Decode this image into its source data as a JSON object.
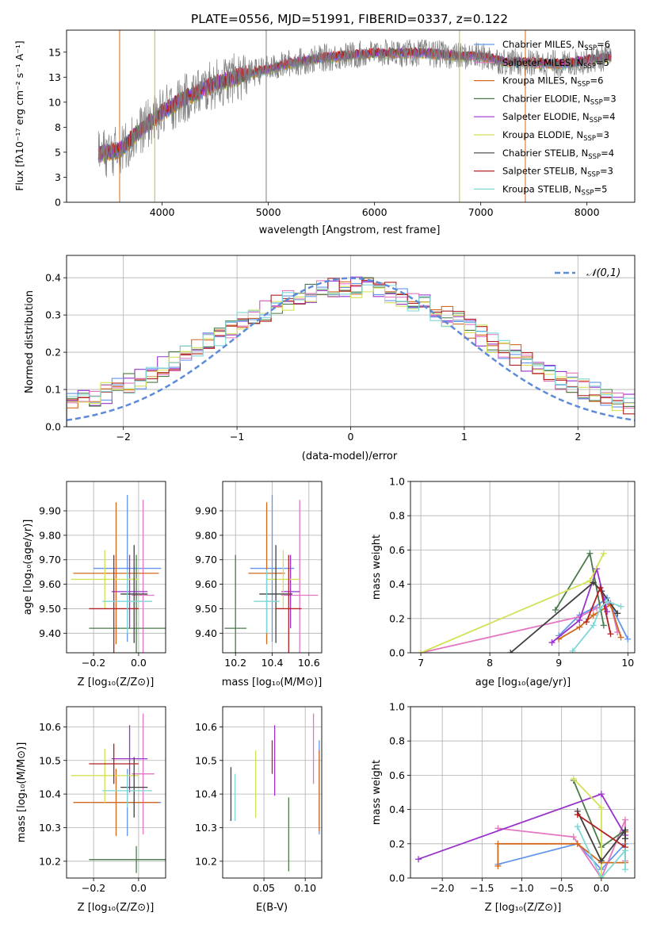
{
  "colors": [
    "#6495ed",
    "#e377c2",
    "#d2691e",
    "#4a7a4a",
    "#9932cc",
    "#d4e157",
    "#404040",
    "#b22222",
    "#7fd6d6"
  ],
  "chart_data": [
    {
      "id": "spectrum",
      "type": "line",
      "title": "PLATE=0556, MJD=51991, FIBERID=0337, z=0.122",
      "xlabel": "wavelength [Angstrom, rest frame]",
      "ylabel": "Flux [fλ10⁻¹⁷ erg cm⁻² s⁻¹ A⁻¹]",
      "xlim": [
        3100,
        8450
      ],
      "ylim": [
        0,
        17.2
      ],
      "xticks": [
        4000,
        5000,
        6000,
        7000,
        8000
      ],
      "yticks": [
        0.0,
        2.5,
        5.0,
        7.5,
        10.0,
        12.5,
        15.0
      ],
      "legend": "top-right",
      "series": [
        {
          "name": "Chabrier MILES, N_SSP=6"
        },
        {
          "name": "Salpeter MILES, N_SSP=5"
        },
        {
          "name": "Kroupa MILES, N_SSP=6"
        },
        {
          "name": "Chabrier ELODIE, N_SSP=3"
        },
        {
          "name": "Salpeter ELODIE, N_SSP=4"
        },
        {
          "name": "Kroupa ELODIE, N_SSP=3"
        },
        {
          "name": "Chabrier STELIB, N_SSP=4"
        },
        {
          "name": "Salpeter STELIB, N_SSP=3"
        },
        {
          "name": "Kroupa STELIB, N_SSP=5"
        }
      ],
      "continuum": {
        "x": [
          3400,
          3600,
          3800,
          4000,
          4200,
          4500,
          4800,
          5000,
          5200,
          5500,
          5800,
          6000,
          6200,
          6500,
          6800,
          7000,
          7200,
          7500,
          7800,
          8000,
          8200
        ],
        "y": [
          4.8,
          5.2,
          7.2,
          9.0,
          10.3,
          11.8,
          12.8,
          13.3,
          13.9,
          14.4,
          14.7,
          14.9,
          14.9,
          14.9,
          14.6,
          14.6,
          14.1,
          13.9,
          13.8,
          14.2,
          14.5
        ]
      }
    },
    {
      "id": "residuals",
      "type": "bar",
      "xlabel": "(data-model)/error",
      "ylabel": "Normed distribution",
      "xlim": [
        -2.5,
        2.5
      ],
      "ylim": [
        0,
        0.46
      ],
      "xticks": [
        -2,
        -1,
        0,
        1,
        2
      ],
      "yticks": [
        0.0,
        0.1,
        0.2,
        0.3,
        0.4
      ],
      "bin_width": 0.1,
      "reference": {
        "name": "𝒩(0,1)",
        "mean": 0,
        "sigma": 1
      },
      "legend": "top-right"
    },
    {
      "id": "age_vs_Z",
      "type": "scatter",
      "xlabel": "Z [log₁₀(Z/Z⊙)]",
      "ylabel": "age  [log₁₀(age/yr)]",
      "xlim": [
        -0.32,
        0.12
      ],
      "ylim": [
        9.32,
        10.02
      ],
      "xticks": [
        -0.2,
        0.0
      ],
      "yticks": [
        9.4,
        9.5,
        9.6,
        9.7,
        9.8,
        9.9
      ],
      "points": [
        {
          "x": -0.05,
          "xerr": 0.15,
          "y": 9.665,
          "yerr": 0.3
        },
        {
          "x": 0.02,
          "xerr": 0.05,
          "y": 9.555,
          "yerr": 0.39
        },
        {
          "x": -0.1,
          "xerr": 0.19,
          "y": 9.645,
          "yerr": 0.29
        },
        {
          "x": -0.01,
          "xerr": 0.21,
          "y": 9.42,
          "yerr": 0.3
        },
        {
          "x": -0.04,
          "xerr": 0.08,
          "y": 9.57,
          "yerr": 0.15
        },
        {
          "x": -0.15,
          "xerr": 0.15,
          "y": 9.62,
          "yerr": 0.12
        },
        {
          "x": -0.02,
          "xerr": 0.06,
          "y": 9.56,
          "yerr": 0.2
        },
        {
          "x": -0.11,
          "xerr": 0.11,
          "y": 9.5,
          "yerr": 0.22
        },
        {
          "x": -0.05,
          "xerr": 0.11,
          "y": 9.53,
          "yerr": 0.13
        }
      ]
    },
    {
      "id": "age_vs_mass",
      "type": "scatter",
      "xlabel": "mass [log₁₀(M/M⊙)]",
      "ylabel": "",
      "xlim": [
        10.13,
        10.67
      ],
      "ylim": [
        9.32,
        10.02
      ],
      "xticks": [
        10.2,
        10.4,
        10.6
      ],
      "yticks": [
        9.4,
        9.5,
        9.6,
        9.7,
        9.8,
        9.9
      ],
      "points": [
        {
          "x": 10.4,
          "xerr": 0.12,
          "y": 9.665,
          "yerr": 0.3
        },
        {
          "x": 10.55,
          "xerr": 0.1,
          "y": 9.555,
          "yerr": 0.39
        },
        {
          "x": 10.37,
          "xerr": 0.1,
          "y": 9.645,
          "yerr": 0.29
        },
        {
          "x": 10.2,
          "xerr": 0.06,
          "y": 9.42,
          "yerr": 0.3
        },
        {
          "x": 10.5,
          "xerr": 0.05,
          "y": 9.57,
          "yerr": 0.15
        },
        {
          "x": 10.46,
          "xerr": 0.09,
          "y": 9.62,
          "yerr": 0.12
        },
        {
          "x": 10.42,
          "xerr": 0.09,
          "y": 9.56,
          "yerr": 0.2
        },
        {
          "x": 10.49,
          "xerr": 0.07,
          "y": 9.5,
          "yerr": 0.22
        },
        {
          "x": 10.37,
          "xerr": 0.07,
          "y": 9.53,
          "yerr": 0.13
        }
      ]
    },
    {
      "id": "weight_vs_age",
      "type": "line",
      "xlabel": "age  [log₁₀(age/yr)]",
      "ylabel": "mass weight",
      "xlim": [
        6.85,
        10.1
      ],
      "ylim": [
        0,
        1.0
      ],
      "xticks": [
        7,
        8,
        9,
        10
      ],
      "yticks": [
        0.0,
        0.2,
        0.4,
        0.6,
        0.8,
        1.0
      ],
      "series": [
        {
          "x": [
            9.0,
            9.3,
            9.5,
            9.7,
            10.0
          ],
          "y": [
            0.1,
            0.22,
            0.26,
            0.32,
            0.08
          ]
        },
        {
          "x": [
            7.0,
            9.3,
            9.55,
            9.75,
            9.85
          ],
          "y": [
            0.0,
            0.21,
            0.26,
            0.29,
            0.12
          ]
        },
        {
          "x": [
            9.0,
            9.3,
            9.5,
            9.75,
            9.9
          ],
          "y": [
            0.08,
            0.15,
            0.22,
            0.28,
            0.09
          ]
        },
        {
          "x": [
            8.95,
            9.45,
            9.65
          ],
          "y": [
            0.25,
            0.58,
            0.16
          ]
        },
        {
          "x": [
            8.9,
            9.3,
            9.55,
            9.7
          ],
          "y": [
            0.06,
            0.19,
            0.49,
            0.24
          ]
        },
        {
          "x": [
            7.0,
            9.45,
            9.65
          ],
          "y": [
            0.0,
            0.42,
            0.58
          ]
        },
        {
          "x": [
            8.3,
            9.5,
            9.62,
            9.85
          ],
          "y": [
            0.0,
            0.41,
            0.36,
            0.23
          ]
        },
        {
          "x": [
            9.4,
            9.6,
            9.75
          ],
          "y": [
            0.18,
            0.38,
            0.11
          ]
        },
        {
          "x": [
            9.2,
            9.5,
            9.6,
            9.7,
            9.9
          ],
          "y": [
            0.01,
            0.16,
            0.26,
            0.3,
            0.27
          ]
        }
      ]
    },
    {
      "id": "mass_vs_Z",
      "type": "scatter",
      "xlabel": "Z [log₁₀(Z/Z⊙)]",
      "ylabel": "mass [log₁₀(M/M⊙)]",
      "xlim": [
        -0.32,
        0.12
      ],
      "ylim": [
        10.15,
        10.66
      ],
      "xticks": [
        -0.2,
        0.0
      ],
      "yticks": [
        10.2,
        10.3,
        10.4,
        10.5,
        10.6
      ],
      "points": [
        {
          "x": -0.05,
          "xerr": 0.15,
          "y": 10.375,
          "yerr": 0.1
        },
        {
          "x": 0.02,
          "xerr": 0.05,
          "y": 10.46,
          "yerr": 0.18
        },
        {
          "x": -0.1,
          "xerr": 0.19,
          "y": 10.375,
          "yerr": 0.1
        },
        {
          "x": -0.01,
          "xerr": 0.21,
          "y": 10.205,
          "yerr": 0.04
        },
        {
          "x": -0.04,
          "xerr": 0.08,
          "y": 10.505,
          "yerr": 0.1
        },
        {
          "x": -0.15,
          "xerr": 0.15,
          "y": 10.455,
          "yerr": 0.08
        },
        {
          "x": -0.02,
          "xerr": 0.06,
          "y": 10.42,
          "yerr": 0.09
        },
        {
          "x": -0.11,
          "xerr": 0.11,
          "y": 10.49,
          "yerr": 0.06
        },
        {
          "x": -0.05,
          "xerr": 0.11,
          "y": 10.41,
          "yerr": 0.05
        }
      ]
    },
    {
      "id": "mass_vs_ebv",
      "type": "scatter",
      "xlabel": "E(B-V)",
      "ylabel": "",
      "xlim": [
        0.0,
        0.12
      ],
      "ylim": [
        10.15,
        10.66
      ],
      "xticks": [
        0.05,
        0.1
      ],
      "yticks": [
        10.2,
        10.3,
        10.4,
        10.5,
        10.6
      ],
      "points": [
        {
          "x": 0.117,
          "y": 10.42,
          "yerr": 0.14
        },
        {
          "x": 0.11,
          "y": 10.535,
          "yerr": 0.105
        },
        {
          "x": 0.117,
          "y": 10.41,
          "yerr": 0.12
        },
        {
          "x": 0.08,
          "y": 10.28,
          "yerr": 0.11
        },
        {
          "x": 0.063,
          "y": 10.5,
          "yerr": 0.105
        },
        {
          "x": 0.04,
          "y": 10.43,
          "yerr": 0.1
        },
        {
          "x": 0.01,
          "y": 10.4,
          "yerr": 0.08
        },
        {
          "x": 0.06,
          "y": 10.51,
          "yerr": 0.05
        },
        {
          "x": 0.015,
          "y": 10.39,
          "yerr": 0.07
        }
      ]
    },
    {
      "id": "weight_vs_Z",
      "type": "line",
      "xlabel": "Z [log₁₀(Z/Z⊙)]",
      "ylabel": "mass weight",
      "xlim": [
        -2.4,
        0.42
      ],
      "ylim": [
        0,
        1.0
      ],
      "xticks": [
        -2.0,
        -1.5,
        -1.0,
        -0.5,
        0.0
      ],
      "yticks": [
        0.0,
        0.2,
        0.4,
        0.6,
        0.8,
        1.0
      ],
      "series": [
        {
          "x": [
            -1.3,
            -0.3,
            0.0,
            0.3,
            0.3
          ],
          "y": [
            0.08,
            0.2,
            0.05,
            0.2,
            0.27
          ]
        },
        {
          "x": [
            -1.3,
            -0.35,
            0.0,
            0.3,
            0.3
          ],
          "y": [
            0.29,
            0.24,
            0.0,
            0.34,
            0.1
          ]
        },
        {
          "x": [
            -1.3,
            -1.3,
            -0.3,
            0.0,
            0.3,
            0.3
          ],
          "y": [
            0.07,
            0.2,
            0.2,
            0.09,
            0.09,
            0.27
          ]
        },
        {
          "x": [
            -0.35,
            0.0,
            0.3
          ],
          "y": [
            0.57,
            0.18,
            0.28
          ]
        },
        {
          "x": [
            -2.3,
            0.0,
            0.3
          ],
          "y": [
            0.11,
            0.49,
            0.25
          ]
        },
        {
          "x": [
            -0.35,
            0.0,
            0.0
          ],
          "y": [
            0.58,
            0.41,
            0.01
          ]
        },
        {
          "x": [
            -0.3,
            0.0,
            0.3,
            0.3
          ],
          "y": [
            0.39,
            0.1,
            0.28,
            0.23
          ]
        },
        {
          "x": [
            -0.3,
            0.3
          ],
          "y": [
            0.37,
            0.18
          ]
        },
        {
          "x": [
            -0.3,
            0.0,
            0.3,
            0.3
          ],
          "y": [
            0.3,
            0.0,
            0.16,
            0.05
          ]
        }
      ]
    }
  ]
}
